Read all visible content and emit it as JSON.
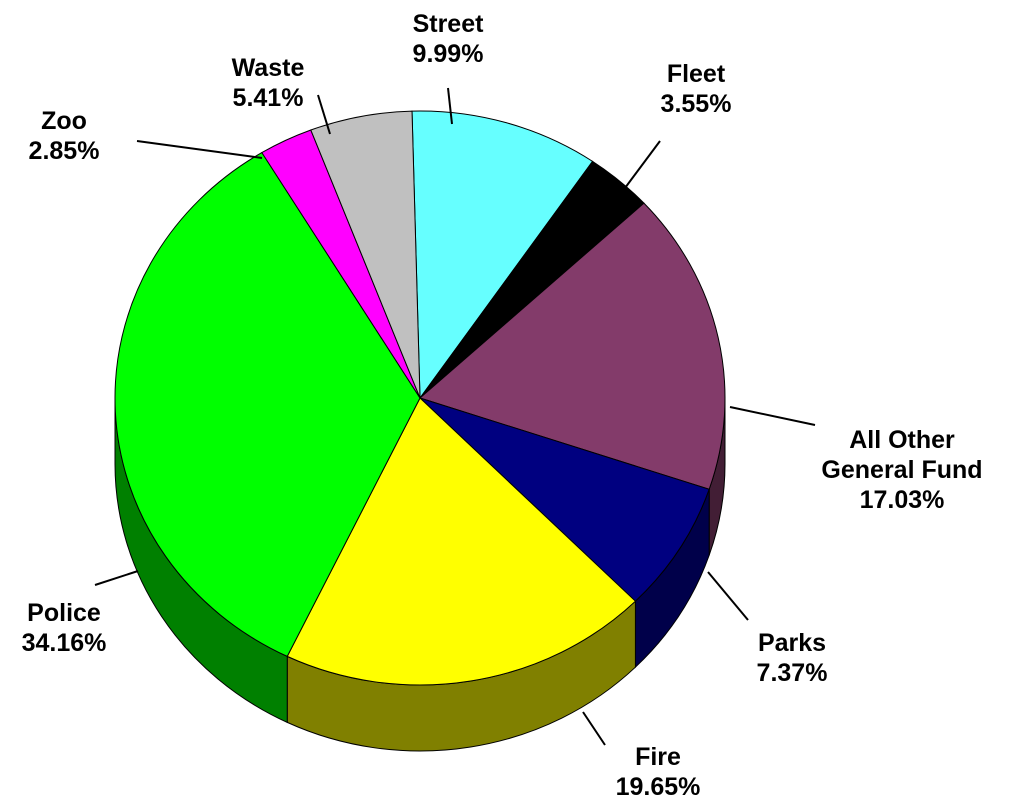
{
  "chart_data": {
    "type": "pie",
    "style": "3d",
    "slices": [
      {
        "label": "Street",
        "label_lines": [
          "Street",
          "9.99%"
        ],
        "value": 9.99,
        "color": "#66FFFF",
        "side_color": "#339999"
      },
      {
        "label": "Fleet",
        "label_lines": [
          "Fleet",
          "3.55%"
        ],
        "value": 3.55,
        "color": "#000000",
        "side_color": "#000000"
      },
      {
        "label": "All Other General Fund",
        "label_lines": [
          "All Other",
          "General Fund",
          "17.03%"
        ],
        "value": 17.03,
        "color": "#833B6A",
        "side_color": "#421E35"
      },
      {
        "label": "Parks",
        "label_lines": [
          "Parks",
          "7.37%"
        ],
        "value": 7.37,
        "color": "#000080",
        "side_color": "#00004A"
      },
      {
        "label": "Fire",
        "label_lines": [
          "Fire",
          "19.65%"
        ],
        "value": 19.65,
        "color": "#FFFF00",
        "side_color": "#808000"
      },
      {
        "label": "Police",
        "label_lines": [
          "Police",
          "34.16%"
        ],
        "value": 34.16,
        "color": "#00FF00",
        "side_color": "#008000"
      },
      {
        "label": "Zoo",
        "label_lines": [
          "Zoo",
          "2.85%"
        ],
        "value": 2.85,
        "color": "#FF00FF",
        "side_color": "#800080"
      },
      {
        "label": "Waste",
        "label_lines": [
          "Waste",
          "5.41%"
        ],
        "value": 5.41,
        "color": "#C0C0C0",
        "side_color": "#808080"
      }
    ],
    "legend": "none"
  }
}
